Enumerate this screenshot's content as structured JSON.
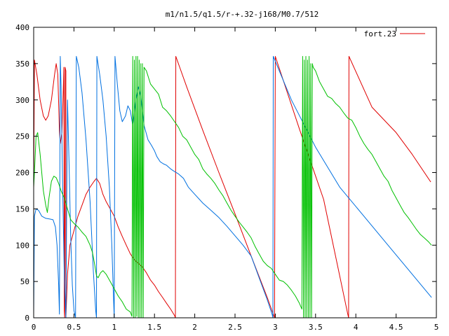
{
  "chart_data": {
    "type": "line",
    "title": "m1/n1.5/q1.5/r-+.32-j168/M0.7/512",
    "xlabel": "",
    "ylabel": "",
    "xlim": [
      0,
      5
    ],
    "ylim": [
      0,
      400
    ],
    "x_ticks": [
      "0",
      "0.5",
      "1",
      "1.5",
      "2",
      "2.5",
      "3",
      "3.5",
      "4",
      "4.5",
      "5"
    ],
    "y_ticks": [
      "0",
      "50",
      "100",
      "150",
      "200",
      "250",
      "300",
      "350",
      "400"
    ],
    "grid": false,
    "legend_position": "top-right",
    "legend_entries": [
      {
        "label": "fort.23",
        "color": "#e00000"
      }
    ],
    "series": [
      {
        "color": "#e00000",
        "points": [
          [
            0.0,
            175
          ],
          [
            0.01,
            355
          ],
          [
            0.04,
            335
          ],
          [
            0.08,
            300
          ],
          [
            0.12,
            278
          ],
          [
            0.15,
            272
          ],
          [
            0.18,
            278
          ],
          [
            0.22,
            300
          ],
          [
            0.26,
            335
          ],
          [
            0.28,
            350
          ],
          [
            0.3,
            335
          ],
          [
            0.31,
            295
          ],
          [
            0.32,
            258
          ],
          [
            0.33,
            240
          ],
          [
            0.35,
            255
          ],
          [
            0.36,
            285
          ],
          [
            0.37,
            325
          ],
          [
            0.375,
            345
          ],
          [
            0.38,
            10
          ],
          [
            0.385,
            0
          ],
          [
            0.39,
            345
          ],
          [
            0.4,
            340
          ],
          [
            0.4,
            0
          ],
          [
            0.405,
            15
          ],
          [
            0.42,
            60
          ],
          [
            0.45,
            100
          ],
          [
            0.5,
            120
          ],
          [
            0.55,
            140
          ],
          [
            0.6,
            155
          ],
          [
            0.65,
            170
          ],
          [
            0.7,
            180
          ],
          [
            0.75,
            188
          ],
          [
            0.78,
            192
          ],
          [
            0.82,
            185
          ],
          [
            0.86,
            170
          ],
          [
            0.9,
            160
          ],
          [
            0.95,
            150
          ],
          [
            1.0,
            140
          ],
          [
            1.05,
            125
          ],
          [
            1.1,
            112
          ],
          [
            1.15,
            100
          ],
          [
            1.2,
            88
          ],
          [
            1.25,
            80
          ],
          [
            1.3,
            75
          ],
          [
            1.35,
            70
          ],
          [
            1.4,
            62
          ],
          [
            1.45,
            52
          ],
          [
            1.5,
            45
          ],
          [
            1.55,
            36
          ],
          [
            1.6,
            28
          ],
          [
            1.65,
            20
          ],
          [
            1.7,
            12
          ],
          [
            1.75,
            3
          ],
          [
            1.76,
            0
          ],
          [
            1.765,
            360
          ],
          [
            1.9,
            318
          ],
          [
            2.1,
            258
          ],
          [
            2.3,
            200
          ],
          [
            2.5,
            143
          ],
          [
            2.7,
            85
          ],
          [
            2.9,
            28
          ],
          [
            2.99,
            0
          ],
          [
            3.0,
            360
          ],
          [
            3.3,
            260
          ],
          [
            3.6,
            163
          ],
          [
            3.9,
            5
          ],
          [
            3.91,
            0
          ],
          [
            3.915,
            360
          ],
          [
            4.2,
            290
          ],
          [
            4.5,
            255
          ],
          [
            4.7,
            225
          ],
          [
            4.93,
            187
          ]
        ]
      },
      {
        "color": "#0070e0",
        "points": [
          [
            0.0,
            5
          ],
          [
            0.01,
            140
          ],
          [
            0.03,
            150
          ],
          [
            0.06,
            148
          ],
          [
            0.1,
            140
          ],
          [
            0.15,
            137
          ],
          [
            0.2,
            136
          ],
          [
            0.24,
            135
          ],
          [
            0.27,
            125
          ],
          [
            0.29,
            100
          ],
          [
            0.31,
            45
          ],
          [
            0.32,
            5
          ],
          [
            0.33,
            360
          ],
          [
            0.34,
            320
          ],
          [
            0.36,
            180
          ],
          [
            0.38,
            60
          ],
          [
            0.4,
            0
          ],
          [
            0.42,
            300
          ],
          [
            0.44,
            210
          ],
          [
            0.46,
            110
          ],
          [
            0.48,
            45
          ],
          [
            0.5,
            10
          ],
          [
            0.52,
            0
          ],
          [
            0.53,
            360
          ],
          [
            0.56,
            345
          ],
          [
            0.6,
            310
          ],
          [
            0.65,
            245
          ],
          [
            0.7,
            160
          ],
          [
            0.74,
            65
          ],
          [
            0.77,
            10
          ],
          [
            0.78,
            0
          ],
          [
            0.785,
            360
          ],
          [
            0.82,
            335
          ],
          [
            0.86,
            300
          ],
          [
            0.9,
            250
          ],
          [
            0.94,
            180
          ],
          [
            0.97,
            100
          ],
          [
            0.99,
            30
          ],
          [
            1.0,
            0
          ],
          [
            1.01,
            360
          ],
          [
            1.04,
            320
          ],
          [
            1.07,
            285
          ],
          [
            1.1,
            270
          ],
          [
            1.14,
            278
          ],
          [
            1.17,
            292
          ],
          [
            1.2,
            285
          ],
          [
            1.23,
            265
          ],
          [
            1.27,
            300
          ],
          [
            1.3,
            318
          ],
          [
            1.33,
            305
          ],
          [
            1.37,
            265
          ],
          [
            1.42,
            245
          ],
          [
            1.46,
            238
          ],
          [
            1.5,
            230
          ],
          [
            1.53,
            222
          ],
          [
            1.57,
            215
          ],
          [
            1.61,
            212
          ],
          [
            1.65,
            210
          ],
          [
            1.7,
            205
          ],
          [
            1.74,
            202
          ],
          [
            1.8,
            198
          ],
          [
            1.86,
            192
          ],
          [
            1.92,
            180
          ],
          [
            2.0,
            170
          ],
          [
            2.1,
            158
          ],
          [
            2.2,
            148
          ],
          [
            2.3,
            138
          ],
          [
            2.4,
            126
          ],
          [
            2.5,
            113
          ],
          [
            2.6,
            100
          ],
          [
            2.7,
            85
          ],
          [
            2.8,
            55
          ],
          [
            2.9,
            25
          ],
          [
            2.96,
            5
          ],
          [
            2.97,
            0
          ],
          [
            2.975,
            360
          ],
          [
            3.2,
            300
          ],
          [
            3.5,
            235
          ],
          [
            3.8,
            180
          ],
          [
            4.1,
            140
          ],
          [
            4.4,
            100
          ],
          [
            4.7,
            60
          ],
          [
            4.94,
            28
          ]
        ]
      },
      {
        "color": "#00c000",
        "points": [
          [
            0.0,
            180
          ],
          [
            0.01,
            200
          ],
          [
            0.03,
            250
          ],
          [
            0.05,
            255
          ],
          [
            0.08,
            225
          ],
          [
            0.12,
            175
          ],
          [
            0.15,
            155
          ],
          [
            0.17,
            145
          ],
          [
            0.19,
            165
          ],
          [
            0.22,
            188
          ],
          [
            0.25,
            195
          ],
          [
            0.28,
            193
          ],
          [
            0.31,
            185
          ],
          [
            0.34,
            175
          ],
          [
            0.38,
            165
          ],
          [
            0.42,
            150
          ],
          [
            0.46,
            135
          ],
          [
            0.5,
            130
          ],
          [
            0.55,
            125
          ],
          [
            0.6,
            118
          ],
          [
            0.65,
            112
          ],
          [
            0.7,
            100
          ],
          [
            0.73,
            90
          ],
          [
            0.76,
            72
          ],
          [
            0.78,
            58
          ],
          [
            0.8,
            55
          ],
          [
            0.83,
            62
          ],
          [
            0.86,
            65
          ],
          [
            0.9,
            60
          ],
          [
            0.95,
            50
          ],
          [
            1.0,
            40
          ],
          [
            1.05,
            30
          ],
          [
            1.1,
            22
          ],
          [
            1.15,
            12
          ],
          [
            1.2,
            8
          ],
          [
            1.22,
            2
          ],
          [
            1.23,
            360
          ],
          [
            1.24,
            0
          ],
          [
            1.25,
            355
          ],
          [
            1.26,
            0
          ],
          [
            1.27,
            360
          ],
          [
            1.28,
            2
          ],
          [
            1.29,
            360
          ],
          [
            1.3,
            0
          ],
          [
            1.31,
            355
          ],
          [
            1.32,
            0
          ],
          [
            1.33,
            350
          ],
          [
            1.34,
            0
          ],
          [
            1.35,
            350
          ],
          [
            1.36,
            0
          ],
          [
            1.37,
            345
          ],
          [
            1.4,
            340
          ],
          [
            1.45,
            322
          ],
          [
            1.5,
            315
          ],
          [
            1.55,
            308
          ],
          [
            1.6,
            290
          ],
          [
            1.65,
            285
          ],
          [
            1.7,
            278
          ],
          [
            1.75,
            270
          ],
          [
            1.8,
            262
          ],
          [
            1.85,
            250
          ],
          [
            1.9,
            245
          ],
          [
            1.95,
            235
          ],
          [
            2.0,
            225
          ],
          [
            2.05,
            218
          ],
          [
            2.1,
            205
          ],
          [
            2.15,
            198
          ],
          [
            2.2,
            192
          ],
          [
            2.25,
            185
          ],
          [
            2.3,
            176
          ],
          [
            2.35,
            168
          ],
          [
            2.4,
            158
          ],
          [
            2.45,
            148
          ],
          [
            2.5,
            140
          ],
          [
            2.55,
            132
          ],
          [
            2.6,
            125
          ],
          [
            2.65,
            118
          ],
          [
            2.7,
            110
          ],
          [
            2.75,
            98
          ],
          [
            2.8,
            88
          ],
          [
            2.85,
            78
          ],
          [
            2.9,
            72
          ],
          [
            2.95,
            68
          ],
          [
            3.0,
            60
          ],
          [
            3.05,
            52
          ],
          [
            3.1,
            50
          ],
          [
            3.15,
            45
          ],
          [
            3.2,
            38
          ],
          [
            3.25,
            30
          ],
          [
            3.3,
            20
          ],
          [
            3.33,
            12
          ],
          [
            3.34,
            360
          ],
          [
            3.35,
            0
          ],
          [
            3.36,
            355
          ],
          [
            3.37,
            0
          ],
          [
            3.38,
            360
          ],
          [
            3.39,
            0
          ],
          [
            3.4,
            355
          ],
          [
            3.41,
            0
          ],
          [
            3.42,
            360
          ],
          [
            3.43,
            0
          ],
          [
            3.44,
            350
          ],
          [
            3.45,
            0
          ],
          [
            3.46,
            350
          ],
          [
            3.47,
            345
          ],
          [
            3.5,
            340
          ],
          [
            3.55,
            325
          ],
          [
            3.6,
            315
          ],
          [
            3.65,
            305
          ],
          [
            3.7,
            302
          ],
          [
            3.75,
            295
          ],
          [
            3.8,
            290
          ],
          [
            3.85,
            282
          ],
          [
            3.9,
            275
          ],
          [
            3.95,
            272
          ],
          [
            4.0,
            262
          ],
          [
            4.05,
            250
          ],
          [
            4.1,
            240
          ],
          [
            4.15,
            232
          ],
          [
            4.2,
            225
          ],
          [
            4.25,
            215
          ],
          [
            4.3,
            205
          ],
          [
            4.35,
            195
          ],
          [
            4.4,
            188
          ],
          [
            4.45,
            175
          ],
          [
            4.5,
            165
          ],
          [
            4.55,
            155
          ],
          [
            4.6,
            145
          ],
          [
            4.65,
            138
          ],
          [
            4.7,
            130
          ],
          [
            4.75,
            122
          ],
          [
            4.8,
            115
          ],
          [
            4.85,
            110
          ],
          [
            4.9,
            105
          ],
          [
            4.94,
            100
          ]
        ]
      }
    ]
  }
}
